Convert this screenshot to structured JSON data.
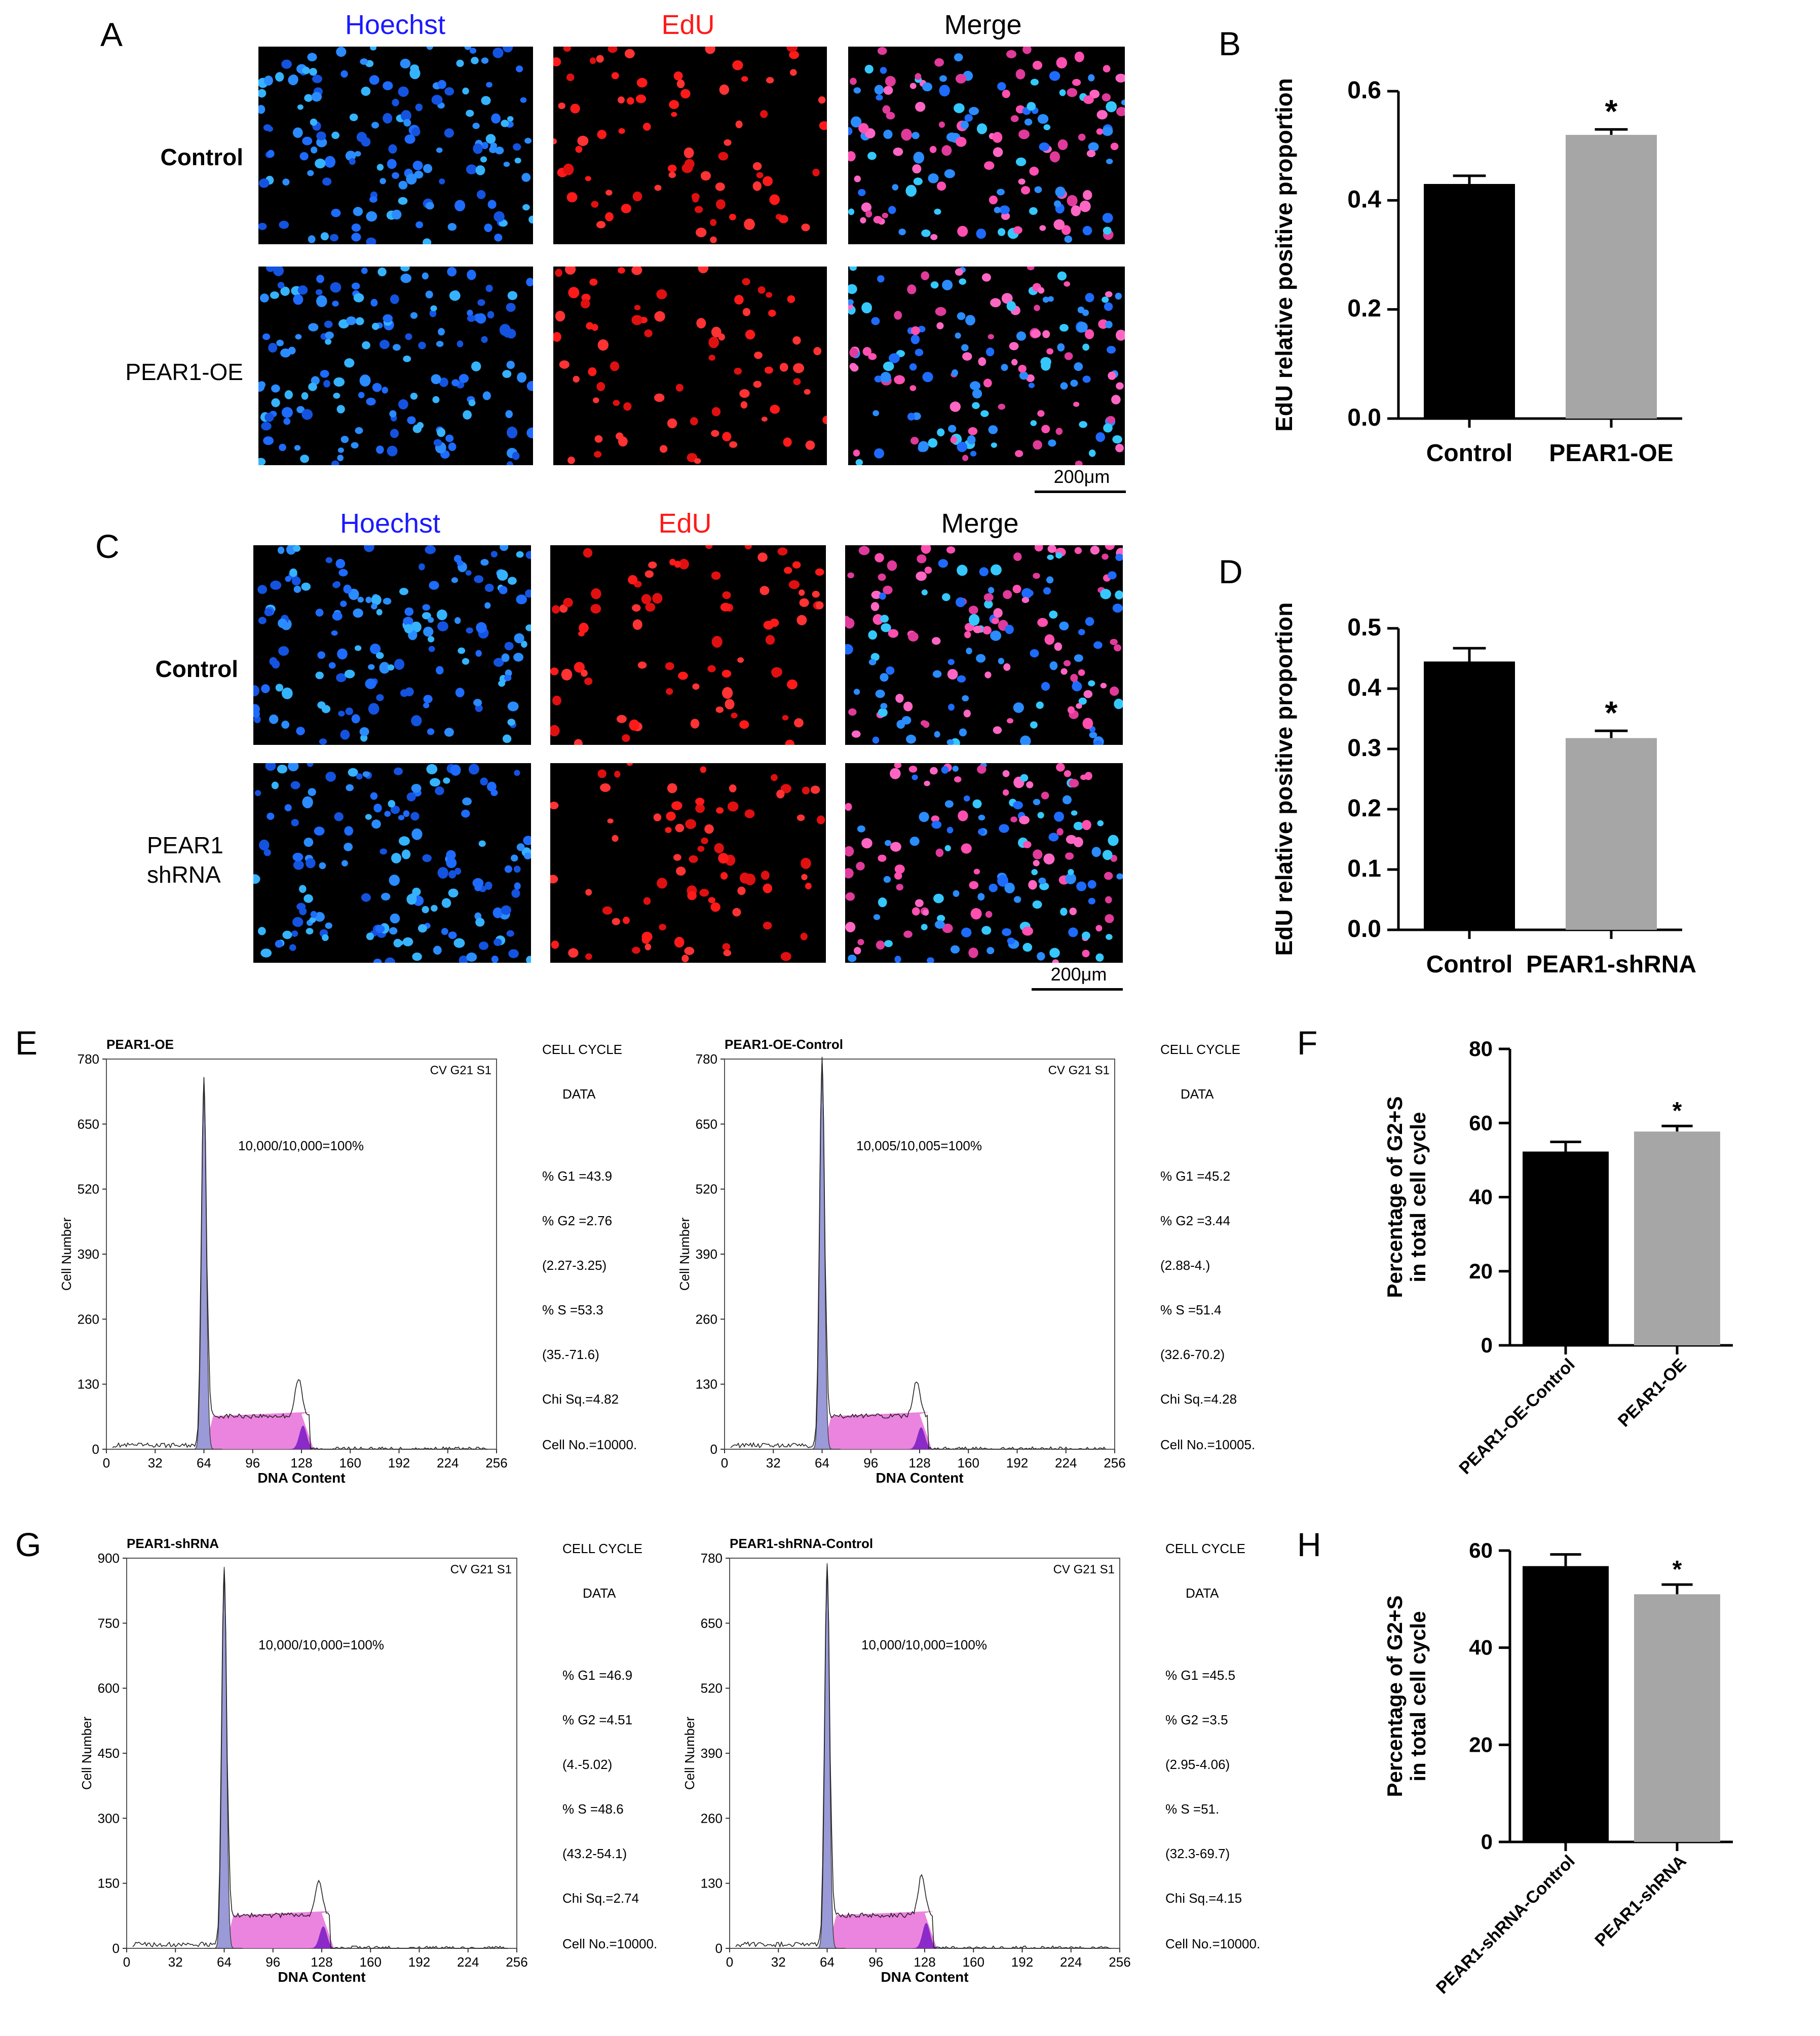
{
  "panels": {
    "A": {
      "letter": "A"
    },
    "B": {
      "letter": "B"
    },
    "C": {
      "letter": "C"
    },
    "D": {
      "letter": "D"
    },
    "E": {
      "letter": "E"
    },
    "F": {
      "letter": "F"
    },
    "G": {
      "letter": "G"
    },
    "H": {
      "letter": "H"
    }
  },
  "channels": [
    "Hoechst",
    "EdU",
    "Merge"
  ],
  "channel_colors": {
    "Hoechst": "#1a1aff",
    "EdU": "#ff1a1a",
    "Merge": "#000000"
  },
  "rowsA": [
    "Control",
    "PEAR1-OE"
  ],
  "rowsC": [
    "Control",
    "PEAR1\nshRNA"
  ],
  "scale_label": "200μm",
  "chart_data": [
    {
      "id": "B",
      "type": "bar",
      "categories": [
        "Control",
        "PEAR1-OE"
      ],
      "values": [
        0.43,
        0.52
      ],
      "errors": [
        0.015,
        0.01
      ],
      "colors": [
        "#000000",
        "#a6a6a6"
      ],
      "ylabel": "EdU relative positive proportion",
      "ylim": [
        0,
        0.6
      ],
      "yticks": [
        "0.0",
        "0.2",
        "0.4",
        "0.6"
      ],
      "tick_values": [
        0,
        0.2,
        0.4,
        0.6
      ],
      "significance": [
        "",
        "*"
      ]
    },
    {
      "id": "D",
      "type": "bar",
      "categories": [
        "Control",
        "PEAR1-shRNA"
      ],
      "values": [
        0.445,
        0.318
      ],
      "errors": [
        0.022,
        0.012
      ],
      "colors": [
        "#000000",
        "#a6a6a6"
      ],
      "ylabel": "EdU relative positive proportion",
      "ylim": [
        0,
        0.5
      ],
      "yticks": [
        "0.0",
        "0.1",
        "0.2",
        "0.3",
        "0.4",
        "0.5"
      ],
      "tick_values": [
        0,
        0.1,
        0.2,
        0.3,
        0.4,
        0.5
      ],
      "significance": [
        "",
        "*"
      ]
    },
    {
      "id": "F",
      "type": "bar",
      "categories": [
        "PEAR1-OE-Control",
        "PEAR1-OE"
      ],
      "values": [
        52.3,
        57.7
      ],
      "errors": [
        2.6,
        1.5
      ],
      "colors": [
        "#000000",
        "#a6a6a6"
      ],
      "ylabel": "Percentage of G2+S\nin total cell cycle",
      "ylim": [
        0,
        80
      ],
      "yticks": [
        "0",
        "20",
        "40",
        "60",
        "80"
      ],
      "tick_values": [
        0,
        20,
        40,
        60,
        80
      ],
      "significance": [
        "",
        "*"
      ]
    },
    {
      "id": "H",
      "type": "bar",
      "categories": [
        "PEAR1-shRNA-Control",
        "PEAR1-shRNA"
      ],
      "values": [
        56.8,
        51.0
      ],
      "errors": [
        2.4,
        2.0
      ],
      "colors": [
        "#000000",
        "#a6a6a6"
      ],
      "ylabel": "Percentage of G2+S\nin total cell cycle",
      "ylim": [
        0,
        60
      ],
      "yticks": [
        "0",
        "20",
        "40",
        "60"
      ],
      "tick_values": [
        0,
        20,
        40,
        60
      ],
      "significance": [
        "",
        "*"
      ]
    }
  ],
  "flow": [
    {
      "title": "PEAR1-OE",
      "corner": "CV G21 S1",
      "events": "10,000/10,000=100%",
      "yticks": [
        "0",
        "130",
        "260",
        "390",
        "520",
        "650",
        "780"
      ],
      "ymax": 780,
      "xticks": [
        "0",
        "32",
        "64",
        "96",
        "128",
        "160",
        "192",
        "224",
        "256"
      ],
      "xlabel": "DNA Content",
      "ylabel": "Cell Number",
      "peak1": 740,
      "peak2": 135,
      "side": [
        "CELL  CYCLE",
        "DATA",
        "% G1 =43.9",
        "% G2 =2.76",
        "(2.27-3.25)",
        "% S  =53.3",
        "(35.-71.6)",
        "Chi Sq.=4.82",
        "Cell No.=10000."
      ]
    },
    {
      "title": "PEAR1-OE-Control",
      "corner": "CV G21 S1",
      "events": "10,005/10,005=100%",
      "yticks": [
        "0",
        "130",
        "260",
        "390",
        "520",
        "650",
        "780"
      ],
      "ymax": 780,
      "xticks": [
        "0",
        "32",
        "64",
        "96",
        "128",
        "160",
        "192",
        "224",
        "256"
      ],
      "xlabel": "DNA Content",
      "ylabel": "Cell Number",
      "peak1": 780,
      "peak2": 125,
      "side": [
        "CELL  CYCLE",
        "DATA",
        "% G1 =45.2",
        "% G2 =3.44",
        "(2.88-4.)",
        "% S  =51.4",
        "(32.6-70.2)",
        "Chi Sq.=4.28",
        "Cell No.=10005."
      ]
    },
    {
      "title": "PEAR1-shRNA",
      "corner": "CV G21 S1",
      "events": "10,000/10,000=100%",
      "yticks": [
        "0",
        "150",
        "300",
        "450",
        "600",
        "750",
        "900"
      ],
      "ymax": 900,
      "xticks": [
        "0",
        "32",
        "64",
        "96",
        "128",
        "160",
        "192",
        "224",
        "256"
      ],
      "xlabel": "DNA Content",
      "ylabel": "Cell Number",
      "peak1": 880,
      "peak2": 145,
      "side": [
        "CELL  CYCLE",
        "DATA",
        "% G1 =46.9",
        "% G2 =4.51",
        "(4.-5.02)",
        "% S  =48.6",
        "(43.2-54.1)",
        "Chi Sq.=2.74",
        "Cell No.=10000."
      ]
    },
    {
      "title": "PEAR1-shRNA-Control",
      "corner": "CV G21 S1",
      "events": "10,000/10,000=100%",
      "yticks": [
        "0",
        "130",
        "260",
        "390",
        "520",
        "650",
        "780"
      ],
      "ymax": 780,
      "xticks": [
        "0",
        "32",
        "64",
        "96",
        "128",
        "160",
        "192",
        "224",
        "256"
      ],
      "xlabel": "DNA Content",
      "ylabel": "Cell Number",
      "peak1": 770,
      "peak2": 145,
      "side": [
        "CELL  CYCLE",
        "DATA",
        "% G1 =45.5",
        "% G2 =3.5",
        "(2.95-4.06)",
        "% S  =51.",
        "(32.3-69.7)",
        "Chi Sq.=4.15",
        "Cell No.=10000."
      ]
    }
  ]
}
